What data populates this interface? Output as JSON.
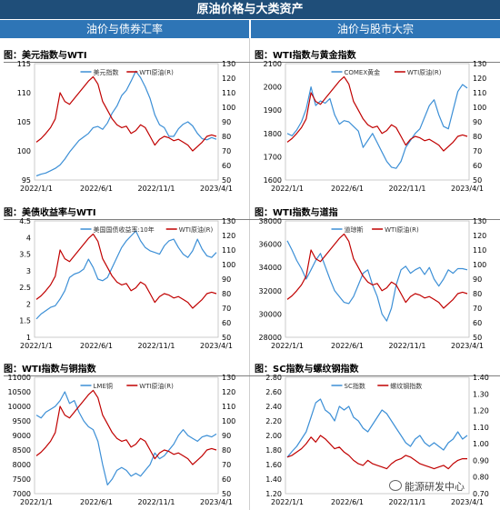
{
  "title": "原油价格与大类资产",
  "sections": {
    "left": "油价与债券汇率",
    "right": "油价与股市大宗"
  },
  "panels": {
    "p1": {
      "title": "图：美元指数与WTI"
    },
    "p2": {
      "title": "图：WTI指数与黄金指数"
    },
    "p3": {
      "title": "图：美债收益率与WTI"
    },
    "p4": {
      "title": "图：WTI指数与道指"
    },
    "p5": {
      "title": "图：WTI指数与铜指数"
    },
    "p6": {
      "title": "图：SC指数与螺纹钢指数"
    }
  },
  "watermark": "能源研发中心",
  "colors": {
    "series_a": "#3c8fd6",
    "series_b": "#c00000"
  },
  "chart_data": [
    {
      "id": "p1",
      "type": "line",
      "x_ticks": [
        "2022/1/1",
        "2022/6/1",
        "2022/11/1",
        "2023/4/1"
      ],
      "y_left": {
        "ticks": [
          95,
          100,
          105,
          110,
          115
        ],
        "range": [
          95,
          115
        ]
      },
      "y_right": {
        "ticks": [
          50,
          60,
          70,
          80,
          90,
          100,
          110,
          120,
          130
        ],
        "range": [
          50,
          130
        ]
      },
      "series": [
        {
          "name": "美元指数",
          "axis": "left",
          "color": "#3c8fd6",
          "values": [
            95.7,
            96.0,
            96.2,
            96.6,
            97.0,
            97.6,
            98.6,
            99.8,
            100.8,
            101.8,
            102.4,
            103.0,
            104.0,
            104.2,
            103.7,
            104.8,
            106.5,
            107.7,
            109.5,
            110.4,
            112.0,
            113.7,
            112.6,
            111.0,
            109.0,
            106.2,
            104.5,
            104.0,
            102.5,
            102.5,
            103.8,
            104.6,
            105.0,
            104.3,
            103.0,
            102.1,
            101.9,
            102.3,
            102.0
          ]
        },
        {
          "name": "WTI原油(R)",
          "axis": "right",
          "color": "#c00000",
          "values": [
            76.0,
            78.5,
            82.0,
            86.0,
            92.0,
            110.0,
            104.0,
            102.0,
            106.0,
            110.0,
            114.0,
            118.0,
            121.0,
            116.0,
            104.0,
            98.0,
            92.0,
            88.0,
            86.0,
            87.0,
            82.0,
            84.0,
            88.0,
            86.0,
            80.0,
            74.0,
            78.0,
            80.0,
            79.0,
            77.0,
            78.0,
            76.0,
            74.0,
            70.0,
            73.0,
            76.0,
            80.0,
            81.0,
            80.0
          ]
        }
      ]
    },
    {
      "id": "p2",
      "type": "line",
      "x_ticks": [
        "2022/1/1",
        "2022/6/1",
        "2022/11/1",
        "2023/4/1"
      ],
      "y_left": {
        "ticks": [
          1600,
          1700,
          1800,
          1900,
          2000,
          2100
        ],
        "range": [
          1600,
          2100
        ]
      },
      "y_right": {
        "ticks": [
          50,
          60,
          70,
          80,
          90,
          100,
          110,
          120,
          130
        ],
        "range": [
          50,
          130
        ]
      },
      "series": [
        {
          "name": "COMEX黄金",
          "axis": "left",
          "color": "#3c8fd6",
          "values": [
            1800,
            1790,
            1815,
            1850,
            1905,
            2000,
            1920,
            1940,
            1930,
            1950,
            1880,
            1840,
            1855,
            1850,
            1830,
            1810,
            1740,
            1770,
            1800,
            1760,
            1720,
            1680,
            1655,
            1650,
            1680,
            1740,
            1770,
            1800,
            1820,
            1870,
            1920,
            1945,
            1880,
            1830,
            1820,
            1900,
            1980,
            2010,
            1995
          ]
        },
        {
          "name": "WTI原油(R)",
          "axis": "right",
          "color": "#c00000",
          "values": [
            76.0,
            78.5,
            82.0,
            86.0,
            92.0,
            110.0,
            104.0,
            102.0,
            106.0,
            110.0,
            114.0,
            118.0,
            121.0,
            116.0,
            104.0,
            98.0,
            92.0,
            88.0,
            86.0,
            87.0,
            82.0,
            84.0,
            88.0,
            86.0,
            80.0,
            74.0,
            78.0,
            80.0,
            79.0,
            77.0,
            78.0,
            76.0,
            74.0,
            70.0,
            73.0,
            76.0,
            80.0,
            81.0,
            80.0
          ]
        }
      ]
    },
    {
      "id": "p3",
      "type": "line",
      "x_ticks": [
        "2022/1/1",
        "2022/6/1",
        "2022/11/1",
        "2023/4/1"
      ],
      "y_left": {
        "ticks": [
          1,
          1.5,
          2,
          2.5,
          3,
          3.5,
          4,
          4.5
        ],
        "tick_labels": [
          "1",
          "1.5",
          "2",
          "2.5",
          "3",
          "3.5",
          "4",
          "4.5"
        ],
        "range": [
          1,
          4.5
        ]
      },
      "y_right": {
        "ticks": [
          50,
          60,
          70,
          80,
          90,
          100,
          110,
          120,
          130
        ],
        "range": [
          50,
          130
        ]
      },
      "series": [
        {
          "name": "美国国债收益率:10年",
          "axis": "left",
          "color": "#3c8fd6",
          "values": [
            1.55,
            1.7,
            1.8,
            1.9,
            1.95,
            2.15,
            2.4,
            2.8,
            2.9,
            2.95,
            3.05,
            3.35,
            3.1,
            2.75,
            2.7,
            2.8,
            3.1,
            3.4,
            3.7,
            3.9,
            4.05,
            4.2,
            3.9,
            3.7,
            3.6,
            3.55,
            3.5,
            3.75,
            3.9,
            3.95,
            3.7,
            3.5,
            3.4,
            3.6,
            3.95,
            3.65,
            3.45,
            3.4,
            3.55
          ]
        },
        {
          "name": "WTI原油(R)",
          "axis": "right",
          "color": "#c00000",
          "values": [
            76.0,
            78.5,
            82.0,
            86.0,
            92.0,
            110.0,
            104.0,
            102.0,
            106.0,
            110.0,
            114.0,
            118.0,
            121.0,
            116.0,
            104.0,
            98.0,
            92.0,
            88.0,
            86.0,
            87.0,
            82.0,
            84.0,
            88.0,
            86.0,
            80.0,
            74.0,
            78.0,
            80.0,
            79.0,
            77.0,
            78.0,
            76.0,
            74.0,
            70.0,
            73.0,
            76.0,
            80.0,
            81.0,
            80.0
          ]
        }
      ]
    },
    {
      "id": "p4",
      "type": "line",
      "x_ticks": [
        "2022/1/1",
        "2022/6/1",
        "2022/11/1",
        "2023/4/1"
      ],
      "y_left": {
        "ticks": [
          28000,
          30000,
          32000,
          34000,
          36000,
          38000
        ],
        "range": [
          28000,
          38000
        ]
      },
      "y_right": {
        "ticks": [
          50,
          60,
          70,
          80,
          90,
          100,
          110,
          120,
          130
        ],
        "range": [
          50,
          130
        ]
      },
      "series": [
        {
          "name": "道琼斯",
          "axis": "left",
          "color": "#3c8fd6",
          "values": [
            36300,
            35500,
            34600,
            33900,
            33000,
            33800,
            34600,
            35200,
            34100,
            33000,
            32000,
            31500,
            31000,
            30900,
            31500,
            32500,
            33500,
            33800,
            32500,
            31500,
            30000,
            29400,
            30500,
            32500,
            33800,
            34100,
            33500,
            33800,
            34000,
            33400,
            34000,
            33000,
            32400,
            33000,
            33800,
            33500,
            33900,
            33900,
            33800
          ]
        },
        {
          "name": "WTI原油(R)",
          "axis": "right",
          "color": "#c00000",
          "values": [
            76.0,
            78.5,
            82.0,
            86.0,
            92.0,
            110.0,
            104.0,
            102.0,
            106.0,
            110.0,
            114.0,
            118.0,
            121.0,
            116.0,
            104.0,
            98.0,
            92.0,
            88.0,
            86.0,
            87.0,
            82.0,
            84.0,
            88.0,
            86.0,
            80.0,
            74.0,
            78.0,
            80.0,
            79.0,
            77.0,
            78.0,
            76.0,
            74.0,
            70.0,
            73.0,
            76.0,
            80.0,
            81.0,
            80.0
          ]
        }
      ]
    },
    {
      "id": "p5",
      "type": "line",
      "x_ticks": [
        "2022/1/1",
        "2022/6/1",
        "2022/11/1",
        "2023/4/1"
      ],
      "y_left": {
        "ticks": [
          7000,
          7500,
          8000,
          8500,
          9000,
          9500,
          10000,
          10500,
          11000
        ],
        "range": [
          7000,
          11000
        ]
      },
      "y_right": {
        "ticks": [
          50,
          60,
          70,
          80,
          90,
          100,
          110,
          120,
          130
        ],
        "range": [
          50,
          130
        ]
      },
      "series": [
        {
          "name": "LME铜",
          "axis": "left",
          "color": "#3c8fd6",
          "values": [
            9700,
            9600,
            9800,
            9900,
            10000,
            10200,
            10500,
            10100,
            10200,
            9800,
            9500,
            9300,
            9200,
            8800,
            8000,
            7300,
            7500,
            7800,
            7900,
            7800,
            7600,
            7700,
            7600,
            7800,
            8000,
            8400,
            8200,
            8300,
            8500,
            8700,
            9000,
            9200,
            9000,
            8900,
            8800,
            8950,
            9000,
            8950,
            9050
          ]
        },
        {
          "name": "WTI原油(R)",
          "axis": "right",
          "color": "#c00000",
          "values": [
            76.0,
            78.5,
            82.0,
            86.0,
            92.0,
            110.0,
            104.0,
            102.0,
            106.0,
            110.0,
            114.0,
            118.0,
            121.0,
            116.0,
            104.0,
            98.0,
            92.0,
            88.0,
            86.0,
            87.0,
            82.0,
            84.0,
            88.0,
            86.0,
            80.0,
            74.0,
            78.0,
            80.0,
            79.0,
            77.0,
            78.0,
            76.0,
            74.0,
            70.0,
            73.0,
            76.0,
            80.0,
            81.0,
            80.0
          ]
        }
      ]
    },
    {
      "id": "p6",
      "type": "line",
      "x_ticks": [
        "2022/1/1",
        "2022/6/1",
        "2022/11/1",
        "2023/4/1"
      ],
      "y_left": {
        "ticks": [
          1.2,
          1.4,
          1.6,
          1.8,
          2.0,
          2.2,
          2.4,
          2.6,
          2.8
        ],
        "tick_labels": [
          "1.20",
          "1.40",
          "1.60",
          "1.80",
          "2.00",
          "2.20",
          "2.40",
          "2.60",
          "2.80"
        ],
        "range": [
          1.2,
          2.8
        ]
      },
      "y_right": {
        "ticks": [
          0.7,
          0.8,
          0.9,
          1.0,
          1.1,
          1.2,
          1.3,
          1.4
        ],
        "tick_labels": [
          "0.70",
          "0.80",
          "0.90",
          "1.00",
          "1.10",
          "1.20",
          "1.30",
          "1.40"
        ],
        "range": [
          0.7,
          1.4
        ]
      },
      "series": [
        {
          "name": "SC指数",
          "axis": "left",
          "color": "#3c8fd6",
          "values": [
            1.7,
            1.78,
            1.85,
            1.95,
            2.05,
            2.25,
            2.45,
            2.5,
            2.35,
            2.3,
            2.2,
            2.4,
            2.35,
            2.4,
            2.25,
            2.2,
            2.1,
            2.05,
            2.15,
            2.25,
            2.35,
            2.3,
            2.2,
            2.1,
            2.0,
            1.9,
            1.85,
            1.95,
            2.0,
            1.9,
            1.85,
            1.9,
            1.85,
            1.8,
            1.9,
            1.95,
            2.05,
            1.95,
            2.0
          ]
        },
        {
          "name": "螺纹钢指数",
          "axis": "right",
          "color": "#c00000",
          "values": [
            0.92,
            0.93,
            0.95,
            0.97,
            1.0,
            1.04,
            1.01,
            1.05,
            1.03,
            1.0,
            0.97,
            0.98,
            0.95,
            0.93,
            0.9,
            0.88,
            0.87,
            0.9,
            0.88,
            0.87,
            0.86,
            0.85,
            0.88,
            0.9,
            0.91,
            0.93,
            0.92,
            0.9,
            0.88,
            0.87,
            0.86,
            0.85,
            0.86,
            0.87,
            0.85,
            0.88,
            0.9,
            0.91,
            0.91
          ]
        }
      ]
    }
  ]
}
